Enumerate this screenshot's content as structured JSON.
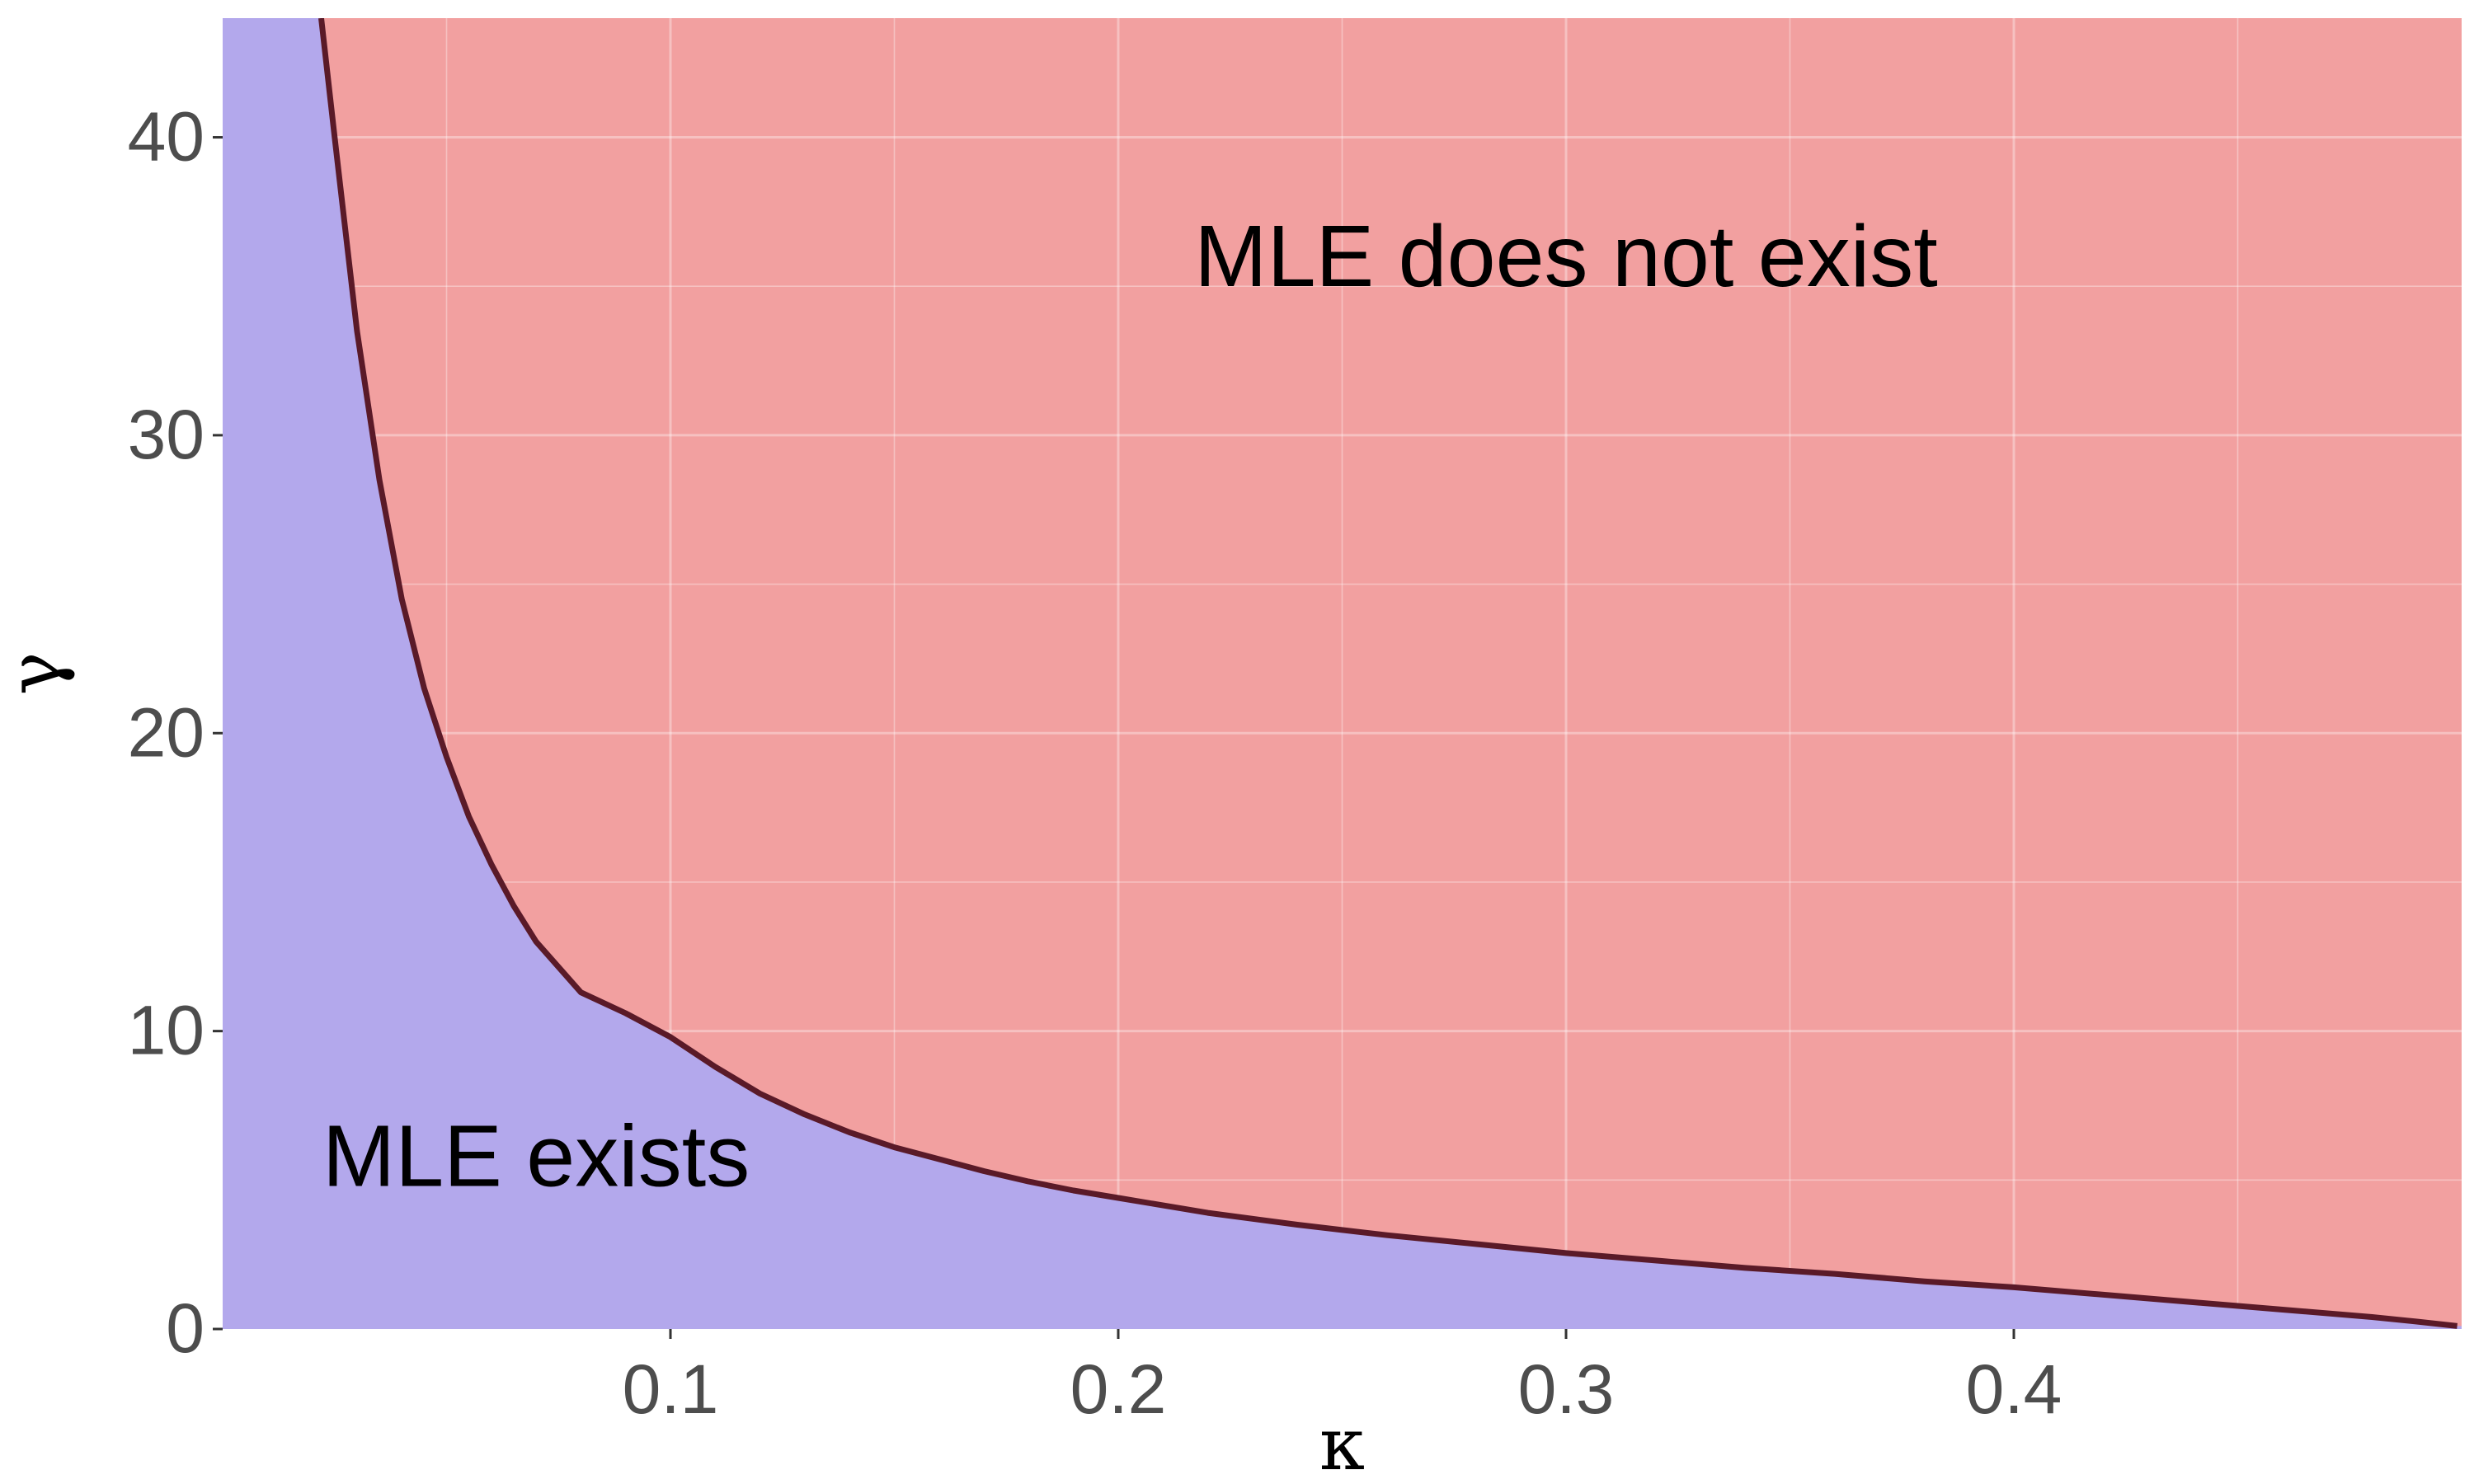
{
  "chart_data": {
    "type": "area",
    "title": "",
    "xlabel": "κ",
    "ylabel": "γ",
    "xlim": [
      0,
      0.5
    ],
    "ylim": [
      0,
      44
    ],
    "x_ticks": [
      0.1,
      0.2,
      0.3,
      0.4
    ],
    "x_tick_labels": [
      "0.1",
      "0.2",
      "0.3",
      "0.4"
    ],
    "y_ticks": [
      0,
      10,
      20,
      30,
      40
    ],
    "y_tick_labels": [
      "0",
      "10",
      "20",
      "30",
      "40"
    ],
    "grid": true,
    "boundary": {
      "x": [
        0.022,
        0.025,
        0.03,
        0.035,
        0.04,
        0.045,
        0.05,
        0.055,
        0.06,
        0.065,
        0.07,
        0.08,
        0.09,
        0.1,
        0.11,
        0.12,
        0.13,
        0.14,
        0.15,
        0.16,
        0.17,
        0.18,
        0.19,
        0.2,
        0.22,
        0.24,
        0.26,
        0.28,
        0.3,
        0.32,
        0.34,
        0.36,
        0.38,
        0.4,
        0.42,
        0.44,
        0.46,
        0.48,
        0.49,
        0.499
      ],
      "y": [
        44,
        40,
        33.5,
        28.5,
        24.5,
        21.5,
        19.2,
        17.2,
        15.6,
        14.2,
        13.0,
        11.3,
        10.6,
        9.8,
        8.8,
        7.9,
        7.2,
        6.6,
        6.1,
        5.7,
        5.3,
        4.95,
        4.65,
        4.4,
        3.9,
        3.5,
        3.15,
        2.85,
        2.55,
        2.3,
        2.05,
        1.85,
        1.6,
        1.4,
        1.15,
        0.9,
        0.65,
        0.4,
        0.25,
        0.1
      ]
    },
    "regions": [
      {
        "name": "MLE exists",
        "color": "#b3a8ec"
      },
      {
        "name": "MLE does not exist",
        "color": "#f2a0a0"
      }
    ],
    "annotations": [
      {
        "text": "MLE does not exist",
        "x": 0.3,
        "y": 35
      },
      {
        "text": "MLE exists",
        "x": 0.07,
        "y": 4.8
      }
    ],
    "boundary_color": "#5a1a28"
  }
}
